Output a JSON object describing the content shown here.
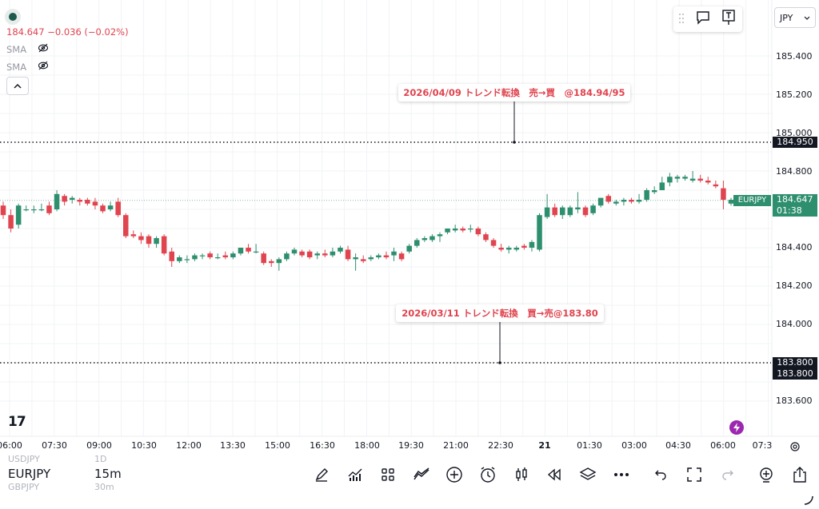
{
  "header": {
    "price_line": "184.647  −0.036 (−0.02%)",
    "indicators": [
      {
        "label": "SMA",
        "visibility_icon": "eye-off-icon"
      },
      {
        "label": "SMA",
        "visibility_icon": "eye-off-icon"
      }
    ],
    "collapse_icon": "chevron-up-icon"
  },
  "top_tools": {
    "drag_icon": "drag-handle-icon",
    "comment_icon": "speech-bubble-icon",
    "text_icon": "text-pin-icon"
  },
  "currency": {
    "label": "JPY"
  },
  "annotations": [
    {
      "text": "2026/04/09 トレンド転換　売→買　@184.94/95",
      "price": 184.95
    },
    {
      "text": "2026/03/11 トレンド転換　買→売@183.80",
      "price": 183.8
    }
  ],
  "price_axis": {
    "ticks": [
      "185.400",
      "185.200",
      "185.000",
      "184.800",
      "184.600",
      "184.400",
      "184.200",
      "184.000",
      "183.800",
      "183.600"
    ],
    "tags": {
      "upper_level": "184.950",
      "lower_level_a": "183.800",
      "lower_level_b": "183.800",
      "symbol": "EURJPY",
      "last_price": "184.647",
      "countdown": "01:38"
    }
  },
  "time_axis": {
    "labels": [
      "06:00",
      "07:30",
      "09:00",
      "10:30",
      "12:00",
      "13:30",
      "15:00",
      "16:30",
      "18:00",
      "19:30",
      "21:00",
      "22:30",
      "21",
      "01:30",
      "03:00",
      "04:30",
      "06:00",
      "07:3"
    ]
  },
  "logo": {
    "text": "17"
  },
  "symbol_picker": {
    "above": {
      "symbol": "USDJPY",
      "interval": "1D"
    },
    "current": {
      "symbol": "EURJPY",
      "interval": "15m"
    },
    "below": {
      "symbol": "GBPJPY",
      "interval": "30m"
    }
  },
  "toolbar": {
    "icons": [
      "pencil-icon",
      "indicators-icon",
      "templates-icon",
      "compare-icon",
      "plus-circle-icon",
      "alarm-icon",
      "candles-icon",
      "replay-icon",
      "layers-icon",
      "more-icon",
      "undo-icon",
      "fullscreen-icon",
      "redo-icon",
      "add-alert-icon",
      "share-icon"
    ]
  },
  "colors": {
    "up": "#26a69a",
    "up_dark": "#2e8f6e",
    "down": "#e0444f",
    "tag_bg": "#131722",
    "last_price_bg": "#2e8f6e",
    "accent_purple": "#9c27b0"
  },
  "chart_data": {
    "type": "candlestick",
    "symbol": "EURJPY",
    "interval": "15m",
    "ylim": [
      183.5,
      185.45
    ],
    "last_price": 184.647,
    "horizontal_levels": [
      184.95,
      183.8
    ],
    "candles": [
      [
        184.62,
        184.64,
        184.55,
        184.57
      ],
      [
        184.57,
        184.6,
        184.48,
        184.5
      ],
      [
        184.52,
        184.63,
        184.5,
        184.62
      ],
      [
        184.6,
        184.62,
        184.59,
        184.6
      ],
      [
        184.6,
        184.62,
        184.58,
        184.6
      ],
      [
        184.6,
        184.63,
        184.59,
        184.6
      ],
      [
        184.62,
        184.64,
        184.57,
        184.58
      ],
      [
        184.6,
        184.7,
        184.59,
        184.68
      ],
      [
        184.67,
        184.68,
        184.62,
        184.64
      ],
      [
        184.65,
        184.67,
        184.63,
        184.66
      ],
      [
        184.65,
        184.66,
        184.62,
        184.64
      ],
      [
        184.65,
        184.66,
        184.62,
        184.63
      ],
      [
        184.64,
        184.66,
        184.6,
        184.62
      ],
      [
        184.62,
        184.63,
        184.58,
        184.59
      ],
      [
        184.6,
        184.64,
        184.59,
        184.62
      ],
      [
        184.64,
        184.66,
        184.56,
        184.57
      ],
      [
        184.57,
        184.58,
        184.45,
        184.46
      ],
      [
        184.47,
        184.49,
        184.45,
        184.46
      ],
      [
        184.46,
        184.48,
        184.42,
        184.44
      ],
      [
        184.46,
        184.47,
        184.4,
        184.42
      ],
      [
        184.42,
        184.46,
        184.4,
        184.45
      ],
      [
        184.46,
        184.47,
        184.36,
        184.37
      ],
      [
        184.38,
        184.4,
        184.3,
        184.33
      ],
      [
        184.33,
        184.36,
        184.32,
        184.35
      ],
      [
        184.34,
        184.36,
        184.32,
        184.34
      ],
      [
        184.34,
        184.37,
        184.33,
        184.36
      ],
      [
        184.36,
        184.37,
        184.34,
        184.36
      ],
      [
        184.37,
        184.38,
        184.34,
        184.35
      ],
      [
        184.35,
        184.37,
        184.34,
        184.35
      ],
      [
        184.36,
        184.38,
        184.34,
        184.35
      ],
      [
        184.35,
        184.38,
        184.34,
        184.37
      ],
      [
        184.37,
        184.4,
        184.36,
        184.4
      ],
      [
        184.4,
        184.42,
        184.37,
        184.38
      ],
      [
        184.38,
        184.42,
        184.37,
        184.38
      ],
      [
        184.37,
        184.38,
        184.31,
        184.32
      ],
      [
        184.33,
        184.34,
        184.3,
        184.32
      ],
      [
        184.32,
        184.35,
        184.28,
        184.34
      ],
      [
        184.34,
        184.38,
        184.33,
        184.37
      ],
      [
        184.37,
        184.4,
        184.36,
        184.39
      ],
      [
        184.38,
        184.39,
        184.35,
        184.36
      ],
      [
        184.38,
        184.39,
        184.34,
        184.35
      ],
      [
        184.36,
        184.38,
        184.34,
        184.37
      ],
      [
        184.37,
        184.39,
        184.35,
        184.36
      ],
      [
        184.36,
        184.4,
        184.35,
        184.38
      ],
      [
        184.38,
        184.41,
        184.37,
        184.4
      ],
      [
        184.39,
        184.41,
        184.33,
        184.34
      ],
      [
        184.34,
        184.37,
        184.28,
        184.35
      ],
      [
        184.34,
        184.36,
        184.32,
        184.33
      ],
      [
        184.34,
        184.36,
        184.33,
        184.35
      ],
      [
        184.35,
        184.37,
        184.34,
        184.36
      ],
      [
        184.36,
        184.38,
        184.34,
        184.35
      ],
      [
        184.36,
        184.4,
        184.33,
        184.38
      ],
      [
        184.37,
        184.38,
        184.33,
        184.34
      ],
      [
        184.38,
        184.42,
        184.37,
        184.41
      ],
      [
        184.41,
        184.45,
        184.4,
        184.44
      ],
      [
        184.44,
        184.46,
        184.43,
        184.45
      ],
      [
        184.44,
        184.47,
        184.43,
        184.46
      ],
      [
        184.46,
        184.48,
        184.43,
        184.47
      ],
      [
        184.48,
        184.5,
        184.47,
        184.5
      ],
      [
        184.49,
        184.52,
        184.48,
        184.5
      ],
      [
        184.5,
        184.51,
        184.48,
        184.49
      ],
      [
        184.5,
        184.52,
        184.48,
        184.5
      ],
      [
        184.5,
        184.51,
        184.46,
        184.47
      ],
      [
        184.47,
        184.48,
        184.43,
        184.44
      ],
      [
        184.44,
        184.45,
        184.4,
        184.41
      ],
      [
        184.4,
        184.42,
        184.38,
        184.39
      ],
      [
        184.39,
        184.41,
        184.37,
        184.4
      ],
      [
        184.39,
        184.41,
        184.38,
        184.4
      ],
      [
        184.41,
        184.42,
        184.39,
        184.4
      ],
      [
        184.4,
        184.44,
        184.38,
        184.43
      ],
      [
        184.39,
        184.58,
        184.38,
        184.57
      ],
      [
        184.56,
        184.68,
        184.55,
        184.61
      ],
      [
        184.61,
        184.63,
        184.56,
        184.57
      ],
      [
        184.57,
        184.62,
        184.55,
        184.61
      ],
      [
        184.57,
        184.62,
        184.56,
        184.61
      ],
      [
        184.6,
        184.69,
        184.58,
        184.61
      ],
      [
        184.61,
        184.62,
        184.56,
        184.57
      ],
      [
        184.58,
        184.63,
        184.57,
        184.62
      ],
      [
        184.62,
        184.66,
        184.61,
        184.66
      ],
      [
        184.67,
        184.68,
        184.63,
        184.64
      ],
      [
        184.63,
        184.65,
        184.62,
        184.64
      ],
      [
        184.64,
        184.66,
        184.62,
        184.65
      ],
      [
        184.65,
        184.66,
        184.63,
        184.64
      ],
      [
        184.64,
        184.68,
        184.63,
        184.65
      ],
      [
        184.65,
        184.71,
        184.64,
        184.7
      ],
      [
        184.69,
        184.72,
        184.68,
        184.7
      ],
      [
        184.7,
        184.77,
        184.7,
        184.74
      ],
      [
        184.74,
        184.79,
        184.72,
        184.77
      ],
      [
        184.76,
        184.78,
        184.74,
        184.77
      ],
      [
        184.76,
        184.78,
        184.75,
        184.77
      ],
      [
        184.75,
        184.8,
        184.74,
        184.76
      ],
      [
        184.76,
        184.78,
        184.74,
        184.75
      ],
      [
        184.75,
        184.77,
        184.73,
        184.74
      ],
      [
        184.73,
        184.75,
        184.71,
        184.72
      ],
      [
        184.71,
        184.75,
        184.6,
        184.65
      ],
      [
        184.63,
        184.66,
        184.62,
        184.65
      ]
    ]
  }
}
